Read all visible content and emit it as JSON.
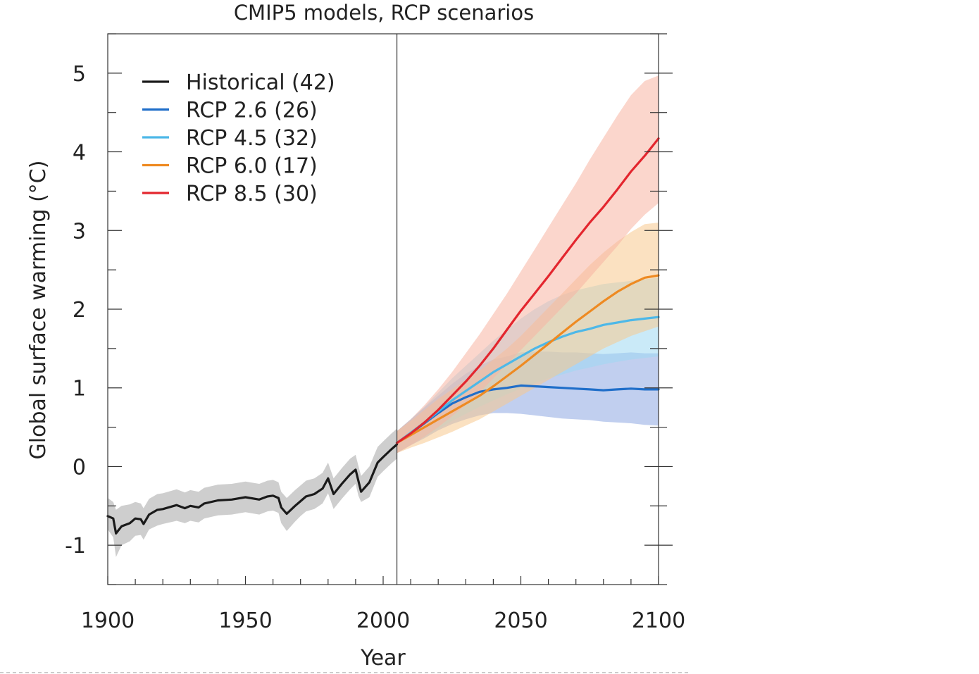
{
  "chart_data": {
    "type": "line",
    "title": "CMIP5 models, RCP scenarios",
    "xlabel": "Year",
    "ylabel": "Global surface warming (°C)",
    "xlim": [
      1900,
      2100
    ],
    "ylim": [
      -1.5,
      5.5
    ],
    "xticks": [
      1900,
      1950,
      2000,
      2050,
      2100
    ],
    "yticks": [
      -1,
      0,
      1,
      2,
      3,
      4,
      5
    ],
    "x_minor_step": 10,
    "y_minor_step": 0.5,
    "divider_year": 2005,
    "legend_position": "top-left",
    "grid": false,
    "series": [
      {
        "name": "Historical (42)",
        "color": "#1a1a1a",
        "band_color": "#a6a6a6",
        "x": [
          1900,
          1902,
          1903,
          1905,
          1908,
          1910,
          1912,
          1913,
          1915,
          1918,
          1920,
          1925,
          1928,
          1930,
          1933,
          1935,
          1940,
          1945,
          1950,
          1955,
          1958,
          1960,
          1962,
          1963,
          1965,
          1968,
          1970,
          1972,
          1975,
          1978,
          1980,
          1982,
          1985,
          1988,
          1990,
          1991,
          1992,
          1995,
          1998,
          2000,
          2003,
          2005
        ],
        "values": [
          -0.63,
          -0.66,
          -0.85,
          -0.76,
          -0.72,
          -0.66,
          -0.67,
          -0.73,
          -0.61,
          -0.55,
          -0.54,
          -0.49,
          -0.53,
          -0.5,
          -0.52,
          -0.47,
          -0.43,
          -0.42,
          -0.39,
          -0.42,
          -0.38,
          -0.37,
          -0.4,
          -0.52,
          -0.6,
          -0.5,
          -0.44,
          -0.38,
          -0.35,
          -0.28,
          -0.15,
          -0.35,
          -0.22,
          -0.1,
          -0.04,
          -0.18,
          -0.32,
          -0.2,
          0.05,
          0.12,
          0.22,
          0.28
        ],
        "lower": [
          -0.8,
          -0.9,
          -1.15,
          -1.0,
          -0.95,
          -0.88,
          -0.87,
          -0.93,
          -0.8,
          -0.75,
          -0.73,
          -0.69,
          -0.72,
          -0.69,
          -0.71,
          -0.66,
          -0.62,
          -0.61,
          -0.58,
          -0.61,
          -0.57,
          -0.56,
          -0.59,
          -0.72,
          -0.82,
          -0.7,
          -0.63,
          -0.57,
          -0.54,
          -0.47,
          -0.34,
          -0.54,
          -0.41,
          -0.29,
          -0.22,
          -0.37,
          -0.45,
          -0.39,
          -0.13,
          -0.06,
          0.04,
          0.1
        ],
        "upper": [
          -0.4,
          -0.45,
          -0.55,
          -0.5,
          -0.48,
          -0.45,
          -0.47,
          -0.53,
          -0.41,
          -0.35,
          -0.34,
          -0.29,
          -0.33,
          -0.3,
          -0.32,
          -0.27,
          -0.23,
          -0.22,
          -0.19,
          -0.22,
          -0.18,
          -0.17,
          -0.2,
          -0.32,
          -0.4,
          -0.3,
          -0.24,
          -0.18,
          -0.15,
          -0.08,
          0.05,
          -0.15,
          -0.02,
          0.1,
          0.15,
          0.01,
          -0.12,
          0.0,
          0.25,
          0.32,
          0.42,
          0.48
        ]
      },
      {
        "name": "RCP 2.6 (26)",
        "color": "#1f6ec9",
        "band_color": "#8ea8e2",
        "x": [
          2005,
          2010,
          2015,
          2020,
          2025,
          2030,
          2035,
          2040,
          2045,
          2050,
          2055,
          2060,
          2065,
          2070,
          2075,
          2080,
          2085,
          2090,
          2095,
          2100
        ],
        "values": [
          0.3,
          0.42,
          0.55,
          0.68,
          0.8,
          0.88,
          0.95,
          0.98,
          1.0,
          1.03,
          1.02,
          1.01,
          1.0,
          0.99,
          0.98,
          0.97,
          0.98,
          0.99,
          0.98,
          0.98
        ],
        "lower": [
          0.17,
          0.27,
          0.36,
          0.46,
          0.54,
          0.6,
          0.65,
          0.68,
          0.68,
          0.67,
          0.65,
          0.63,
          0.61,
          0.6,
          0.59,
          0.57,
          0.56,
          0.55,
          0.53,
          0.52
        ],
        "upper": [
          0.45,
          0.6,
          0.75,
          0.9,
          1.05,
          1.18,
          1.28,
          1.36,
          1.4,
          1.45,
          1.46,
          1.46,
          1.45,
          1.45,
          1.44,
          1.43,
          1.44,
          1.45,
          1.44,
          1.44
        ]
      },
      {
        "name": "RCP 4.5 (32)",
        "color": "#4db8e8",
        "band_color": "#9ed8f2",
        "x": [
          2005,
          2010,
          2015,
          2020,
          2025,
          2030,
          2035,
          2040,
          2045,
          2050,
          2055,
          2060,
          2065,
          2070,
          2075,
          2080,
          2085,
          2090,
          2095,
          2100
        ],
        "values": [
          0.3,
          0.43,
          0.56,
          0.7,
          0.84,
          0.96,
          1.08,
          1.2,
          1.3,
          1.4,
          1.5,
          1.58,
          1.65,
          1.71,
          1.75,
          1.8,
          1.83,
          1.86,
          1.88,
          1.9
        ],
        "lower": [
          0.17,
          0.28,
          0.38,
          0.48,
          0.58,
          0.67,
          0.76,
          0.84,
          0.92,
          0.99,
          1.06,
          1.12,
          1.17,
          1.22,
          1.26,
          1.3,
          1.33,
          1.36,
          1.38,
          1.4
        ],
        "upper": [
          0.45,
          0.6,
          0.76,
          0.94,
          1.12,
          1.28,
          1.44,
          1.6,
          1.74,
          1.88,
          2.0,
          2.1,
          2.18,
          2.24,
          2.28,
          2.32,
          2.34,
          2.36,
          2.38,
          2.4
        ]
      },
      {
        "name": "RCP 6.0 (17)",
        "color": "#ee8a22",
        "band_color": "#f8c98e",
        "x": [
          2005,
          2010,
          2015,
          2020,
          2025,
          2030,
          2035,
          2040,
          2045,
          2050,
          2055,
          2060,
          2065,
          2070,
          2075,
          2080,
          2085,
          2090,
          2095,
          2100
        ],
        "values": [
          0.3,
          0.4,
          0.5,
          0.6,
          0.7,
          0.8,
          0.9,
          1.02,
          1.15,
          1.28,
          1.42,
          1.56,
          1.7,
          1.84,
          1.97,
          2.1,
          2.22,
          2.32,
          2.4,
          2.43
        ],
        "lower": [
          0.17,
          0.24,
          0.3,
          0.37,
          0.44,
          0.52,
          0.6,
          0.7,
          0.8,
          0.9,
          1.0,
          1.1,
          1.2,
          1.3,
          1.4,
          1.5,
          1.58,
          1.66,
          1.72,
          1.78
        ],
        "upper": [
          0.45,
          0.58,
          0.72,
          0.86,
          0.98,
          1.1,
          1.22,
          1.36,
          1.5,
          1.66,
          1.84,
          2.02,
          2.2,
          2.38,
          2.56,
          2.72,
          2.86,
          2.98,
          3.08,
          3.1
        ]
      },
      {
        "name": "RCP 8.5 (30)",
        "color": "#e3262e",
        "band_color": "#f7b5a2",
        "x": [
          2005,
          2010,
          2015,
          2020,
          2025,
          2030,
          2035,
          2040,
          2045,
          2050,
          2055,
          2060,
          2065,
          2070,
          2075,
          2080,
          2085,
          2090,
          2095,
          2100
        ],
        "values": [
          0.3,
          0.42,
          0.56,
          0.72,
          0.9,
          1.08,
          1.28,
          1.5,
          1.74,
          1.98,
          2.2,
          2.42,
          2.65,
          2.88,
          3.1,
          3.3,
          3.52,
          3.75,
          3.95,
          4.17
        ],
        "lower": [
          0.17,
          0.27,
          0.38,
          0.5,
          0.64,
          0.78,
          0.94,
          1.12,
          1.3,
          1.48,
          1.66,
          1.84,
          2.02,
          2.2,
          2.4,
          2.6,
          2.8,
          3.02,
          3.2,
          3.35
        ],
        "upper": [
          0.45,
          0.6,
          0.78,
          0.98,
          1.2,
          1.44,
          1.68,
          1.94,
          2.2,
          2.48,
          2.76,
          3.04,
          3.32,
          3.6,
          3.9,
          4.18,
          4.46,
          4.72,
          4.9,
          4.97
        ]
      }
    ]
  }
}
